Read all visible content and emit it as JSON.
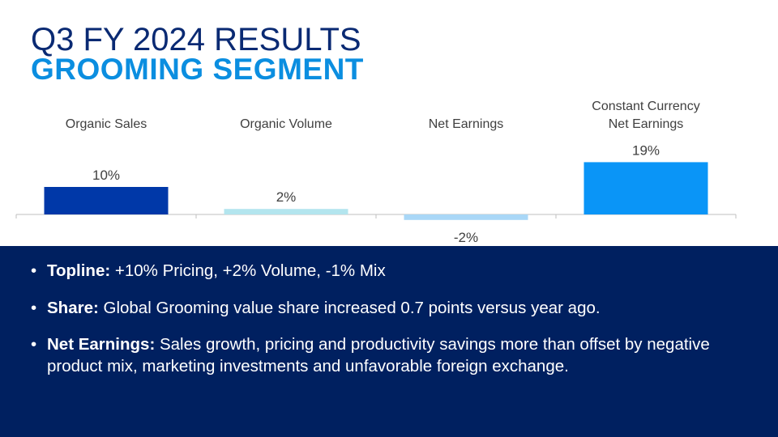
{
  "slide": {
    "title": "Q3 FY 2024 RESULTS",
    "subtitle": "GROOMING SEGMENT"
  },
  "chart_data": {
    "type": "bar",
    "categories": [
      [
        "Organic Sales"
      ],
      [
        "Organic Volume"
      ],
      [
        "Net Earnings"
      ],
      [
        "Constant Currency",
        "Net Earnings"
      ]
    ],
    "values": [
      10,
      2,
      -2,
      19
    ],
    "data_labels": [
      "10%",
      "2%",
      "-2%",
      "19%"
    ],
    "colors": [
      "#0038a8",
      "#b3e5ee",
      "#a9d7f7",
      "#0a95f7"
    ],
    "axis_color": "#bfbfbf",
    "grid": false,
    "legend": "none"
  },
  "bullets": [
    {
      "marker": "•",
      "bold": "Topline:",
      "text": " +10% Pricing, +2% Volume, -1% Mix"
    },
    {
      "marker": "•",
      "bold": "Share:",
      "text": " Global Grooming value share increased 0.7 points versus year ago."
    },
    {
      "marker": "•",
      "bold": "Net Earnings:",
      "text": " Sales growth, pricing and productivity savings more than offset by negative product mix, marketing investments and unfavorable foreign exchange."
    }
  ],
  "colors": {
    "title": "#0a2a73",
    "subtitle": "#0b8ee0",
    "panel_background": "#002060",
    "panel_text": "#ffffff"
  }
}
